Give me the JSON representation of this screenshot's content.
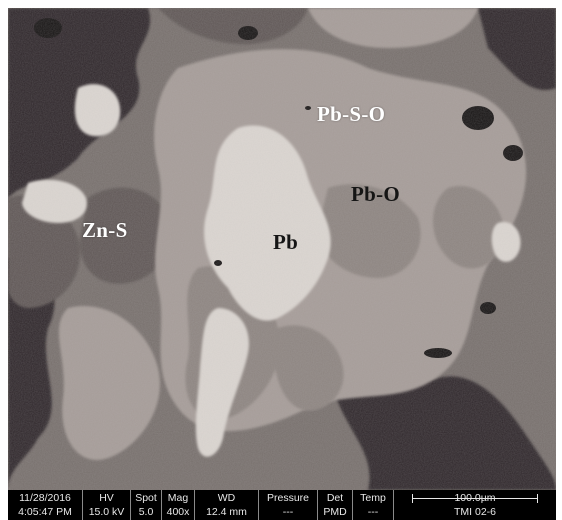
{
  "labels": {
    "pb_s_o": "Pb-S-O",
    "pb_o": "Pb-O",
    "zn_s": "Zn-S",
    "pb": "Pb"
  },
  "databar": {
    "date": "11/28/2016",
    "time": "4:05:47 PM",
    "hv_label": "HV",
    "hv_value": "15.0 kV",
    "spot_label": "Spot",
    "spot_value": "5.0",
    "mag_label": "Mag",
    "mag_value": "400x",
    "wd_label": "WD",
    "wd_value": "12.4 mm",
    "pressure_label": "Pressure",
    "pressure_value": "---",
    "det_label": "Det",
    "det_value": "PMD",
    "temp_label": "Temp",
    "temp_value": "---",
    "scale_label": "100.0µm",
    "sample_id": "TMI 02-6"
  },
  "colors": {
    "bright_phase": "#dcd6d0",
    "light_grey_phase": "#a39995",
    "mid_grey_phase": "#7e7572",
    "dark_phase": "#2a2627",
    "pore_black": "#151313"
  }
}
